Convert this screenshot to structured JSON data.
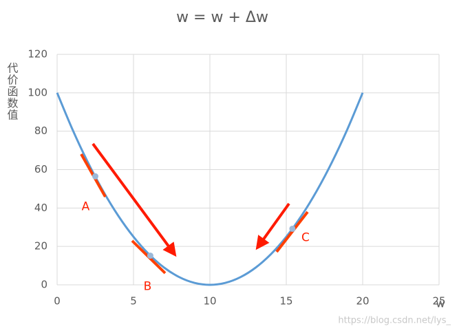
{
  "chart_data": {
    "type": "line",
    "title": "w = w + Δw",
    "x_label": "w",
    "y_label": "代价函数值",
    "x": [
      0,
      1,
      2,
      3,
      4,
      5,
      6,
      7,
      8,
      9,
      10,
      11,
      12,
      13,
      14,
      15,
      16,
      17,
      18,
      19,
      20
    ],
    "series": [
      {
        "color": "#5b9bd5",
        "values": [
          100,
          81,
          64,
          49,
          36,
          25,
          16,
          9,
          4,
          1,
          0,
          1,
          4,
          9,
          16,
          25,
          36,
          49,
          64,
          81,
          100
        ]
      }
    ],
    "points": [
      {
        "label": "A",
        "x": 2.5,
        "y": 56.5
      },
      {
        "label": "B",
        "x": 6.1,
        "y": 15.2
      },
      {
        "label": "C",
        "x": 15.4,
        "y": 29.2
      }
    ],
    "xlim": [
      0,
      25
    ],
    "xticks": [
      0,
      5,
      10,
      15,
      20,
      25
    ],
    "ylim": [
      0,
      120
    ],
    "yticks": [
      0,
      20,
      40,
      60,
      80,
      100,
      120
    ],
    "grid": true,
    "watermark": "https://blog.csdn.net/lys_"
  }
}
